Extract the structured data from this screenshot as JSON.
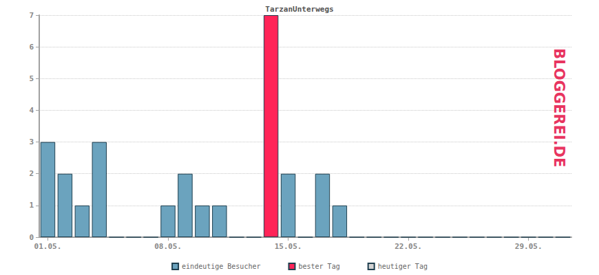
{
  "chart_data": {
    "type": "bar",
    "title": "TarzanUnterwegs",
    "categories": [
      "01.05.",
      null,
      null,
      null,
      null,
      null,
      null,
      "08.05.",
      null,
      null,
      null,
      null,
      null,
      null,
      "15.05.",
      null,
      null,
      null,
      null,
      null,
      null,
      "22.05.",
      null,
      null,
      null,
      null,
      null,
      null,
      "29.05.",
      null,
      null
    ],
    "series": [
      {
        "name": "eindeutige Besucher",
        "color": "#6ba3be",
        "values": [
          3,
          2,
          1,
          3,
          0,
          0,
          0,
          1,
          2,
          1,
          1,
          0,
          0,
          null,
          2,
          0,
          2,
          1,
          0,
          0,
          0,
          0,
          0,
          0,
          0,
          0,
          0,
          0,
          0,
          0,
          0
        ]
      },
      {
        "name": "bester Tag",
        "color": "#ff2458",
        "values": [
          null,
          null,
          null,
          null,
          null,
          null,
          null,
          null,
          null,
          null,
          null,
          null,
          null,
          7,
          null,
          null,
          null,
          null,
          null,
          null,
          null,
          null,
          null,
          null,
          null,
          null,
          null,
          null,
          null,
          null,
          null
        ]
      },
      {
        "name": "heutiger Tag",
        "color": "#d3d3d3",
        "values": [
          null,
          null,
          null,
          null,
          null,
          null,
          null,
          null,
          null,
          null,
          null,
          null,
          null,
          null,
          null,
          null,
          null,
          null,
          null,
          null,
          null,
          null,
          null,
          null,
          null,
          null,
          null,
          null,
          null,
          null,
          null
        ]
      }
    ],
    "ylim": [
      0,
      7
    ],
    "yticks": [
      0,
      1,
      2,
      3,
      4,
      5,
      6,
      7
    ],
    "grid": true,
    "legend": "bottom",
    "annotations": [
      "BLOGGEREI.DE"
    ]
  }
}
